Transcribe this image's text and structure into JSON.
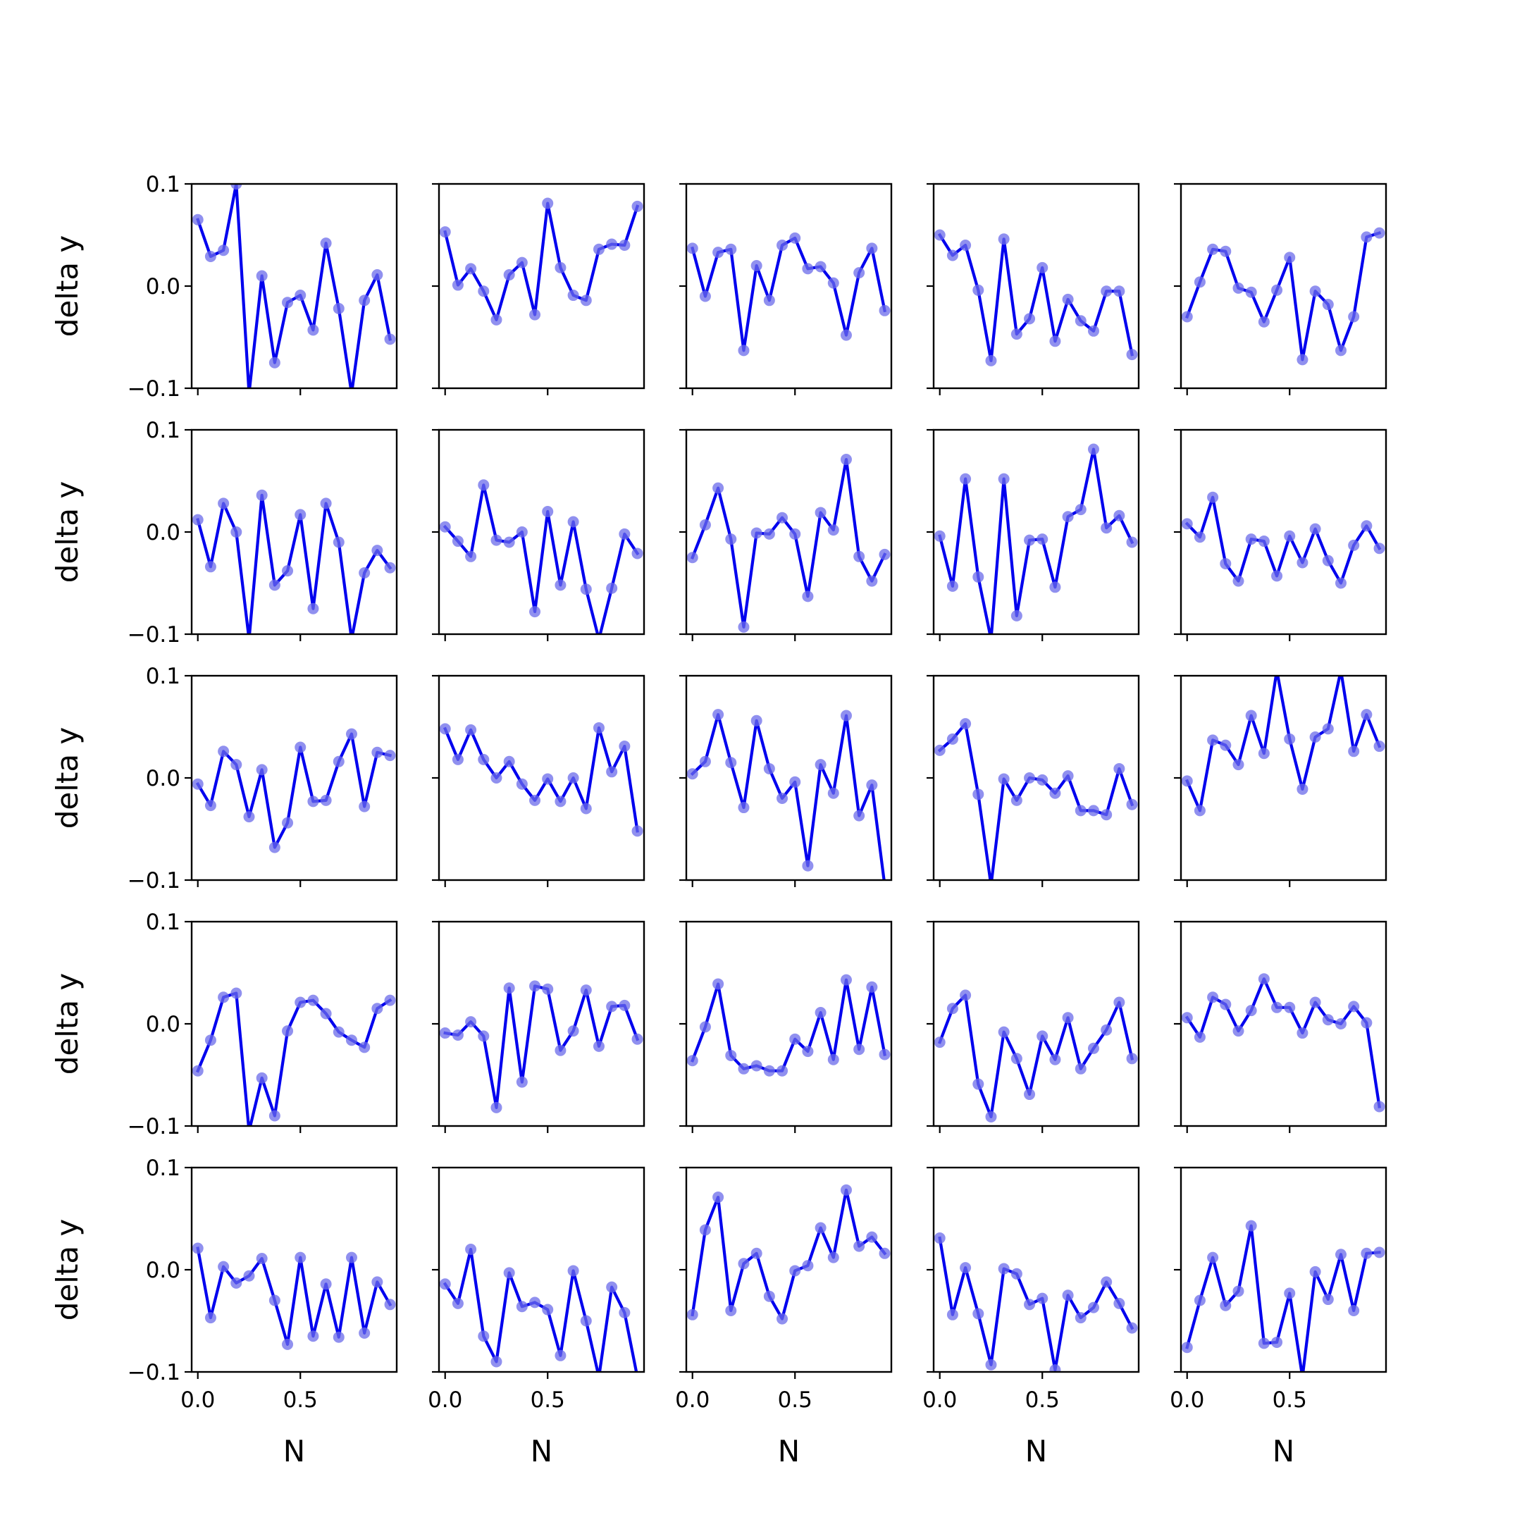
{
  "figure": {
    "ylabel": "delta y",
    "xlabel": "N"
  },
  "style": {
    "line_color": "#0000ee",
    "marker_color": "#6b6bea",
    "axes_color": "#000000"
  },
  "chart_data": {
    "type": "line",
    "grid": false,
    "rows": 5,
    "cols": 5,
    "shared_x": true,
    "shared_y": true,
    "x": [
      0.0,
      0.0625,
      0.125,
      0.1875,
      0.25,
      0.3125,
      0.375,
      0.4375,
      0.5,
      0.5625,
      0.625,
      0.6875,
      0.75,
      0.8125,
      0.875,
      0.9375
    ],
    "xlim": [
      -0.03,
      0.97
    ],
    "ylim": [
      -0.1,
      0.1
    ],
    "xticks": [
      0.0,
      0.5
    ],
    "xtick_labels": [
      "0.0",
      "0.5"
    ],
    "yticks": [
      0.1,
      0.0,
      -0.1
    ],
    "ytick_labels": [
      "0.1",
      "0.0",
      "−0.1"
    ],
    "panels": [
      {
        "values": [
          0.065,
          0.029,
          0.035,
          0.1,
          -0.105,
          0.01,
          -0.075,
          -0.016,
          -0.009,
          -0.043,
          0.042,
          -0.022,
          -0.105,
          -0.014,
          0.011,
          -0.052
        ]
      },
      {
        "values": [
          0.053,
          0.001,
          0.017,
          -0.005,
          -0.033,
          0.011,
          0.023,
          -0.028,
          0.081,
          0.018,
          -0.009,
          -0.014,
          0.036,
          0.041,
          0.04,
          0.078
        ]
      },
      {
        "values": [
          0.037,
          -0.01,
          0.033,
          0.036,
          -0.063,
          0.02,
          -0.014,
          0.04,
          0.047,
          0.017,
          0.019,
          0.003,
          -0.048,
          0.013,
          0.037,
          -0.024
        ]
      },
      {
        "values": [
          0.05,
          0.03,
          0.04,
          -0.004,
          -0.073,
          0.046,
          -0.047,
          -0.032,
          0.018,
          -0.054,
          -0.013,
          -0.034,
          -0.044,
          -0.005,
          -0.005,
          -0.067
        ]
      },
      {
        "values": [
          -0.03,
          0.004,
          0.036,
          0.034,
          -0.002,
          -0.006,
          -0.035,
          -0.004,
          0.028,
          -0.072,
          -0.005,
          -0.018,
          -0.063,
          -0.03,
          0.048,
          0.052
        ]
      },
      {
        "values": [
          0.012,
          -0.034,
          0.028,
          0.0,
          -0.105,
          0.036,
          -0.052,
          -0.038,
          0.017,
          -0.075,
          0.028,
          -0.01,
          -0.105,
          -0.04,
          -0.018,
          -0.035
        ]
      },
      {
        "values": [
          0.005,
          -0.009,
          -0.024,
          0.046,
          -0.008,
          -0.01,
          0.0,
          -0.078,
          0.02,
          -0.052,
          0.01,
          -0.056,
          -0.105,
          -0.055,
          -0.002,
          -0.021
        ]
      },
      {
        "values": [
          -0.025,
          0.007,
          0.043,
          -0.007,
          -0.093,
          -0.001,
          -0.002,
          0.014,
          -0.002,
          -0.063,
          0.019,
          0.002,
          0.071,
          -0.024,
          -0.048,
          -0.022
        ]
      },
      {
        "values": [
          -0.004,
          -0.053,
          0.052,
          -0.044,
          -0.105,
          0.052,
          -0.082,
          -0.008,
          -0.007,
          -0.054,
          0.015,
          0.022,
          0.081,
          0.004,
          0.016,
          -0.01
        ]
      },
      {
        "values": [
          0.008,
          -0.005,
          0.034,
          -0.031,
          -0.048,
          -0.007,
          -0.009,
          -0.043,
          -0.004,
          -0.03,
          0.003,
          -0.028,
          -0.05,
          -0.013,
          0.006,
          -0.016
        ]
      },
      {
        "values": [
          -0.006,
          -0.027,
          0.026,
          0.013,
          -0.038,
          0.008,
          -0.068,
          -0.044,
          0.03,
          -0.023,
          -0.022,
          0.016,
          0.043,
          -0.028,
          0.025,
          0.022
        ]
      },
      {
        "values": [
          0.048,
          0.018,
          0.047,
          0.018,
          0.0,
          0.016,
          -0.006,
          -0.022,
          -0.001,
          -0.023,
          0.0,
          -0.03,
          0.049,
          0.006,
          0.031,
          -0.052
        ]
      },
      {
        "values": [
          0.004,
          0.016,
          0.062,
          0.015,
          -0.029,
          0.056,
          0.009,
          -0.02,
          -0.004,
          -0.086,
          0.013,
          -0.015,
          0.061,
          -0.037,
          -0.007,
          -0.105
        ]
      },
      {
        "values": [
          0.027,
          0.038,
          0.053,
          -0.016,
          -0.105,
          -0.001,
          -0.022,
          0.0,
          -0.002,
          -0.015,
          0.002,
          -0.032,
          -0.032,
          -0.036,
          0.009,
          -0.026
        ]
      },
      {
        "values": [
          -0.003,
          -0.032,
          0.037,
          0.032,
          0.013,
          0.061,
          0.024,
          0.105,
          0.038,
          -0.011,
          0.04,
          0.048,
          0.105,
          0.026,
          0.062,
          0.031
        ]
      },
      {
        "values": [
          -0.046,
          -0.016,
          0.026,
          0.03,
          -0.105,
          -0.053,
          -0.09,
          -0.007,
          0.021,
          0.023,
          0.01,
          -0.008,
          -0.016,
          -0.023,
          0.015,
          0.023
        ]
      },
      {
        "values": [
          -0.009,
          -0.011,
          0.002,
          -0.012,
          -0.082,
          0.035,
          -0.057,
          0.037,
          0.034,
          -0.026,
          -0.007,
          0.033,
          -0.022,
          0.017,
          0.018,
          -0.015
        ]
      },
      {
        "values": [
          -0.036,
          -0.003,
          0.039,
          -0.031,
          -0.044,
          -0.041,
          -0.046,
          -0.046,
          -0.015,
          -0.027,
          0.011,
          -0.035,
          0.043,
          -0.025,
          0.036,
          -0.03
        ]
      },
      {
        "values": [
          -0.018,
          0.015,
          0.028,
          -0.059,
          -0.091,
          -0.008,
          -0.034,
          -0.069,
          -0.012,
          -0.035,
          0.006,
          -0.044,
          -0.024,
          -0.006,
          0.021,
          -0.034
        ]
      },
      {
        "values": [
          0.006,
          -0.013,
          0.026,
          0.019,
          -0.007,
          0.013,
          0.044,
          0.016,
          0.016,
          -0.009,
          0.021,
          0.004,
          0.0,
          0.017,
          0.001,
          -0.081
        ]
      },
      {
        "values": [
          0.021,
          -0.047,
          0.003,
          -0.013,
          -0.006,
          0.011,
          -0.03,
          -0.073,
          0.012,
          -0.065,
          -0.014,
          -0.066,
          0.012,
          -0.062,
          -0.012,
          -0.034
        ]
      },
      {
        "values": [
          -0.014,
          -0.033,
          0.02,
          -0.065,
          -0.09,
          -0.003,
          -0.036,
          -0.032,
          -0.039,
          -0.084,
          -0.001,
          -0.05,
          -0.105,
          -0.017,
          -0.042,
          -0.105
        ]
      },
      {
        "values": [
          -0.044,
          0.039,
          0.071,
          -0.04,
          0.006,
          0.016,
          -0.026,
          -0.048,
          -0.001,
          0.004,
          0.041,
          0.012,
          0.078,
          0.023,
          0.032,
          0.016
        ]
      },
      {
        "values": [
          0.031,
          -0.044,
          0.002,
          -0.043,
          -0.093,
          0.001,
          -0.004,
          -0.034,
          -0.028,
          -0.098,
          -0.025,
          -0.047,
          -0.037,
          -0.012,
          -0.033,
          -0.057
        ]
      },
      {
        "values": [
          -0.076,
          -0.03,
          0.012,
          -0.035,
          -0.021,
          0.043,
          -0.072,
          -0.071,
          -0.023,
          -0.105,
          -0.002,
          -0.029,
          0.015,
          -0.04,
          0.016,
          0.017
        ]
      }
    ]
  }
}
